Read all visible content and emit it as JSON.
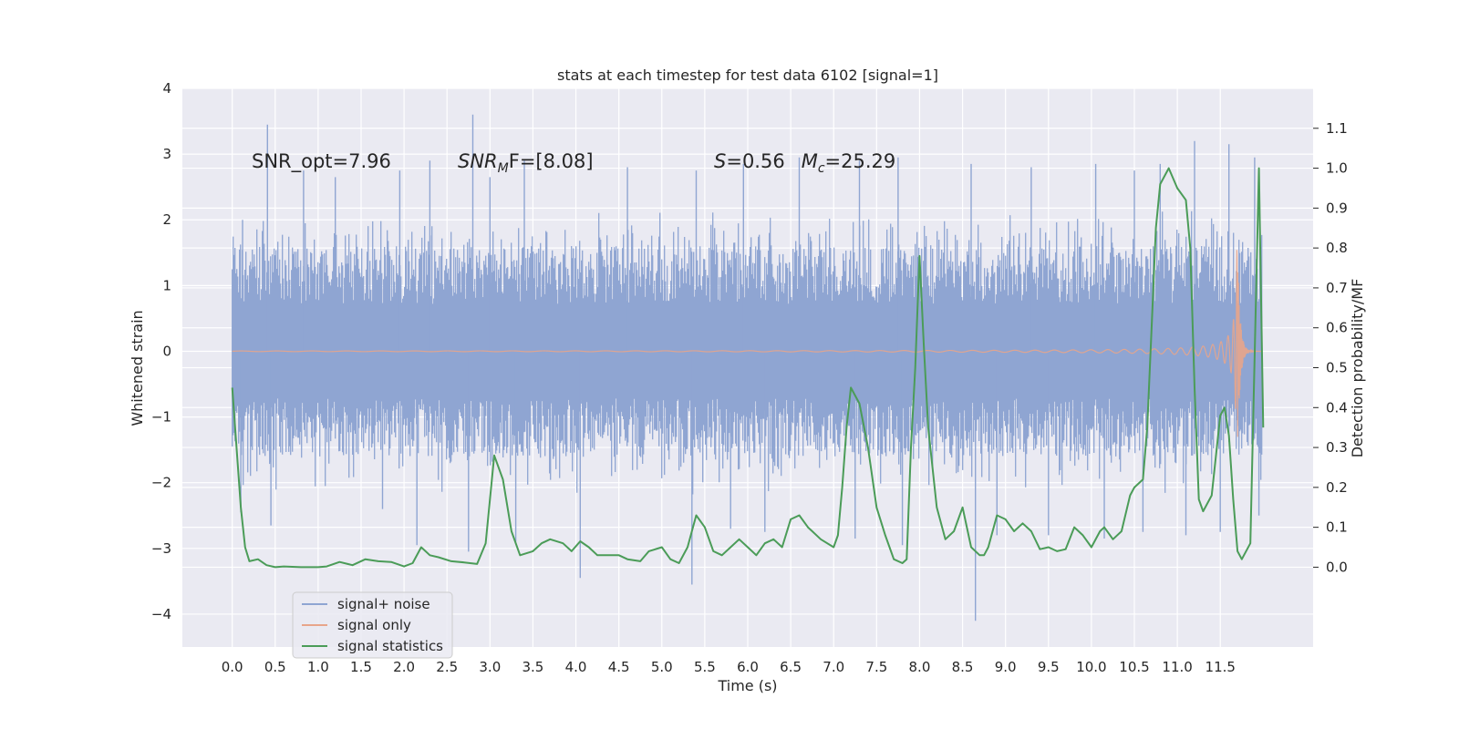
{
  "chart_data": {
    "type": "line",
    "title": "stats at each timestep for test data 6102 [signal=1]",
    "xlabel": "Time (s)",
    "ylabel": "Whitened strain",
    "ylabel_right": "Detection probability/MF",
    "xlim": [
      -0.58,
      12.58
    ],
    "ylim": [
      -4.5,
      4
    ],
    "ylim_right": [
      -0.2,
      1.2
    ],
    "x_ticks": [
      0.0,
      0.5,
      1.0,
      1.5,
      2.0,
      2.5,
      3.0,
      3.5,
      4.0,
      4.5,
      5.0,
      5.5,
      6.0,
      6.5,
      7.0,
      7.5,
      8.0,
      8.5,
      9.0,
      9.5,
      10.0,
      10.5,
      11.0,
      11.5
    ],
    "x_tick_labels": [
      "0.0",
      "0.5",
      "1.0",
      "1.5",
      "2.0",
      "2.5",
      "3.0",
      "3.5",
      "4.0",
      "4.5",
      "5.0",
      "5.5",
      "6.0",
      "6.5",
      "7.0",
      "7.5",
      "8.0",
      "8.5",
      "9.0",
      "9.5",
      "10.0",
      "10.5",
      "11.0",
      "11.5"
    ],
    "y_ticks": [
      -4,
      -3,
      -2,
      -1,
      0,
      1,
      2,
      3,
      4
    ],
    "y_tick_labels": [
      "−4",
      "−3",
      "−2",
      "−1",
      "0",
      "1",
      "2",
      "3",
      "4"
    ],
    "y_ticks_right": [
      0.0,
      0.1,
      0.2,
      0.3,
      0.4,
      0.5,
      0.6,
      0.7,
      0.8,
      0.9,
      1.0,
      1.1
    ],
    "y_tick_labels_right": [
      "0.0",
      "0.1",
      "0.2",
      "0.3",
      "0.4",
      "0.5",
      "0.6",
      "0.7",
      "0.8",
      "0.9",
      "1.0",
      "1.1"
    ],
    "grid": true,
    "legend_position": "lower-left",
    "annotations": [
      {
        "text": "SNR_opt=7.96",
        "x": 0.2,
        "y": 2.9
      },
      {
        "text": "SNR_MF=[8.08]",
        "x": 2.6,
        "y": 2.9
      },
      {
        "text": "S=0.56   M_c=25.29",
        "x": 5.6,
        "y": 2.9
      }
    ],
    "annotation_display": {
      "snr_opt": "SNR_opt=7.96",
      "snr_mf_main": "SNR",
      "snr_mf_sub": "M",
      "snr_mf_rest": "F=[8.08]",
      "s_main": "S",
      "s_rest": "=0.56",
      "mc_main": "M",
      "mc_sub": "c",
      "mc_rest": "=25.29"
    },
    "series": [
      {
        "name": "signal+ noise",
        "color": "#8fa5d2",
        "axis": "left",
        "kind": "noise-envelope",
        "x_range": [
          0.0,
          11.99
        ],
        "typical_upper": 1.6,
        "typical_lower": -1.6,
        "peak_points": [
          [
            0.12,
            2.0
          ],
          [
            0.41,
            3.45
          ],
          [
            0.83,
            2.75
          ],
          [
            1.2,
            2.65
          ],
          [
            1.95,
            2.75
          ],
          [
            2.3,
            2.9
          ],
          [
            2.8,
            3.6
          ],
          [
            3.0,
            2.65
          ],
          [
            3.4,
            2.9
          ],
          [
            4.6,
            2.8
          ],
          [
            5.4,
            2.75
          ],
          [
            5.95,
            2.85
          ],
          [
            6.6,
            2.95
          ],
          [
            7.3,
            2.9
          ],
          [
            7.75,
            2.95
          ],
          [
            8.6,
            2.85
          ],
          [
            9.3,
            2.8
          ],
          [
            10.05,
            2.85
          ],
          [
            10.5,
            2.75
          ],
          [
            10.8,
            2.85
          ],
          [
            11.2,
            3.2
          ],
          [
            11.6,
            3.15
          ],
          [
            11.9,
            2.95
          ]
        ],
        "trough_points": [
          [
            0.1,
            -2.45
          ],
          [
            0.45,
            -2.65
          ],
          [
            1.75,
            -2.4
          ],
          [
            2.15,
            -2.95
          ],
          [
            2.75,
            -3.05
          ],
          [
            3.3,
            -2.9
          ],
          [
            4.05,
            -3.45
          ],
          [
            5.35,
            -3.55
          ],
          [
            5.8,
            -2.7
          ],
          [
            6.2,
            -2.75
          ],
          [
            7.25,
            -2.85
          ],
          [
            7.8,
            -2.95
          ],
          [
            8.65,
            -4.1
          ],
          [
            8.9,
            -2.8
          ],
          [
            9.5,
            -2.8
          ],
          [
            10.15,
            -2.85
          ],
          [
            10.6,
            -2.75
          ],
          [
            11.1,
            -2.8
          ],
          [
            11.5,
            -2.75
          ],
          [
            11.95,
            -2.5
          ]
        ]
      },
      {
        "name": "signal only",
        "color": "#e8a58a",
        "axis": "left",
        "kind": "chirp",
        "x_range": [
          0.0,
          11.99
        ],
        "peak_amplitude": 1.55,
        "peak_time": 11.7
      },
      {
        "name": "signal statistics",
        "color": "#4b9c58",
        "axis": "right",
        "kind": "line",
        "x": [
          0.0,
          0.05,
          0.1,
          0.15,
          0.2,
          0.3,
          0.4,
          0.5,
          0.6,
          0.8,
          1.0,
          1.1,
          1.25,
          1.4,
          1.55,
          1.7,
          1.85,
          2.0,
          2.1,
          2.2,
          2.3,
          2.4,
          2.55,
          2.7,
          2.85,
          2.95,
          3.05,
          3.15,
          3.25,
          3.35,
          3.5,
          3.6,
          3.7,
          3.85,
          3.95,
          4.05,
          4.15,
          4.25,
          4.35,
          4.5,
          4.6,
          4.75,
          4.85,
          5.0,
          5.1,
          5.2,
          5.3,
          5.4,
          5.5,
          5.6,
          5.7,
          5.8,
          5.9,
          6.0,
          6.1,
          6.2,
          6.3,
          6.4,
          6.5,
          6.6,
          6.7,
          6.85,
          7.0,
          7.05,
          7.1,
          7.15,
          7.2,
          7.3,
          7.4,
          7.5,
          7.6,
          7.65,
          7.7,
          7.8,
          7.85,
          7.9,
          7.95,
          8.0,
          8.05,
          8.1,
          8.2,
          8.3,
          8.4,
          8.5,
          8.6,
          8.7,
          8.75,
          8.8,
          8.9,
          9.0,
          9.1,
          9.2,
          9.3,
          9.4,
          9.5,
          9.6,
          9.7,
          9.8,
          9.9,
          10.0,
          10.1,
          10.15,
          10.25,
          10.35,
          10.45,
          10.5,
          10.6,
          10.65,
          10.7,
          10.75,
          10.8,
          10.9,
          11.0,
          11.1,
          11.15,
          11.2,
          11.25,
          11.3,
          11.4,
          11.5,
          11.55,
          11.6,
          11.65,
          11.7,
          11.75,
          11.85,
          11.95,
          12.0
        ],
        "values": [
          0.45,
          0.3,
          0.15,
          0.05,
          0.015,
          0.02,
          0.005,
          0.0,
          0.002,
          0.0,
          0.0,
          0.002,
          0.013,
          0.005,
          0.02,
          0.015,
          0.013,
          0.002,
          0.01,
          0.05,
          0.03,
          0.025,
          0.015,
          0.012,
          0.008,
          0.06,
          0.28,
          0.22,
          0.09,
          0.03,
          0.04,
          0.06,
          0.07,
          0.06,
          0.04,
          0.065,
          0.05,
          0.03,
          0.03,
          0.03,
          0.02,
          0.015,
          0.04,
          0.05,
          0.02,
          0.01,
          0.05,
          0.13,
          0.1,
          0.04,
          0.03,
          0.05,
          0.07,
          0.05,
          0.03,
          0.06,
          0.07,
          0.05,
          0.12,
          0.13,
          0.1,
          0.07,
          0.05,
          0.08,
          0.2,
          0.35,
          0.45,
          0.41,
          0.3,
          0.15,
          0.08,
          0.05,
          0.02,
          0.01,
          0.02,
          0.3,
          0.5,
          0.78,
          0.55,
          0.35,
          0.15,
          0.07,
          0.09,
          0.15,
          0.05,
          0.03,
          0.03,
          0.05,
          0.13,
          0.12,
          0.09,
          0.11,
          0.09,
          0.045,
          0.05,
          0.04,
          0.045,
          0.1,
          0.08,
          0.05,
          0.09,
          0.1,
          0.07,
          0.09,
          0.18,
          0.2,
          0.22,
          0.35,
          0.6,
          0.85,
          0.96,
          1.0,
          0.95,
          0.92,
          0.8,
          0.45,
          0.17,
          0.14,
          0.18,
          0.38,
          0.4,
          0.33,
          0.17,
          0.04,
          0.02,
          0.06,
          1.0,
          0.35
        ]
      }
    ]
  }
}
